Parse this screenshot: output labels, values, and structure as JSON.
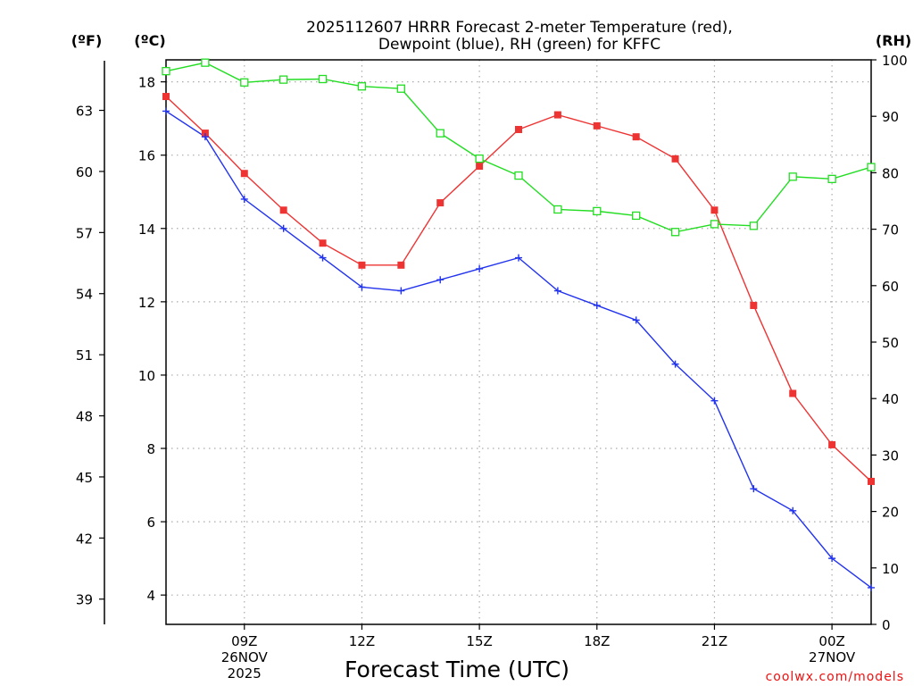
{
  "chart_data": {
    "type": "line",
    "title_line1": "2025112607 HRRR Forecast 2-meter Temperature (red),",
    "title_line2": "Dewpoint (blue), RH (green) for KFFC",
    "xlabel": "Forecast Time (UTC)",
    "unit_labels": {
      "fahrenheit": "(ºF)",
      "celsius": "(ºC)",
      "rh": "(RH)"
    },
    "credit": "coolwx.com/models",
    "x_hours": [
      7,
      8,
      9,
      10,
      11,
      12,
      13,
      14,
      15,
      16,
      17,
      18,
      19,
      20,
      21,
      22,
      23,
      24,
      25
    ],
    "xlim": [
      7,
      25
    ],
    "x_ticks": [
      {
        "hour": 9,
        "lines": [
          "09Z",
          "26NOV",
          "2025"
        ]
      },
      {
        "hour": 12,
        "lines": [
          "12Z"
        ]
      },
      {
        "hour": 15,
        "lines": [
          "15Z"
        ]
      },
      {
        "hour": 18,
        "lines": [
          "18Z"
        ]
      },
      {
        "hour": 21,
        "lines": [
          "21Z"
        ]
      },
      {
        "hour": 24,
        "lines": [
          "00Z",
          "27NOV"
        ]
      }
    ],
    "ylim_c": [
      3.2,
      18.6
    ],
    "yticks_c": [
      4,
      6,
      8,
      10,
      12,
      14,
      16,
      18
    ],
    "yticks_f": [
      39,
      42,
      45,
      48,
      51,
      54,
      57,
      60,
      63
    ],
    "ylim_rh": [
      0,
      100
    ],
    "yticks_rh": [
      0,
      10,
      20,
      30,
      40,
      50,
      60,
      70,
      80,
      90,
      100
    ],
    "series": [
      {
        "name": "Temperature",
        "color": "#ee3333",
        "marker": "filled-square",
        "axis": "celsius",
        "values": [
          17.6,
          16.6,
          15.5,
          14.5,
          13.6,
          13.0,
          13.0,
          14.7,
          15.7,
          16.7,
          17.1,
          16.8,
          16.5,
          15.9,
          14.5,
          11.9,
          9.5,
          8.1,
          7.1
        ]
      },
      {
        "name": "Dewpoint",
        "color": "#2233ee",
        "marker": "plus",
        "axis": "celsius",
        "values": [
          17.2,
          16.5,
          14.8,
          14.0,
          13.2,
          12.4,
          12.3,
          12.6,
          12.9,
          13.2,
          12.3,
          11.9,
          11.5,
          10.3,
          9.3,
          6.9,
          6.3,
          5.0,
          4.2
        ]
      },
      {
        "name": "RH",
        "color": "#22dd22",
        "marker": "open-square",
        "axis": "rh",
        "values": [
          98,
          99.5,
          96,
          96.5,
          96.6,
          95.3,
          94.9,
          87,
          82.5,
          79.5,
          73.5,
          73.2,
          72.4,
          69.5,
          70.9,
          70.6,
          79.3,
          78.9,
          81
        ]
      }
    ]
  }
}
